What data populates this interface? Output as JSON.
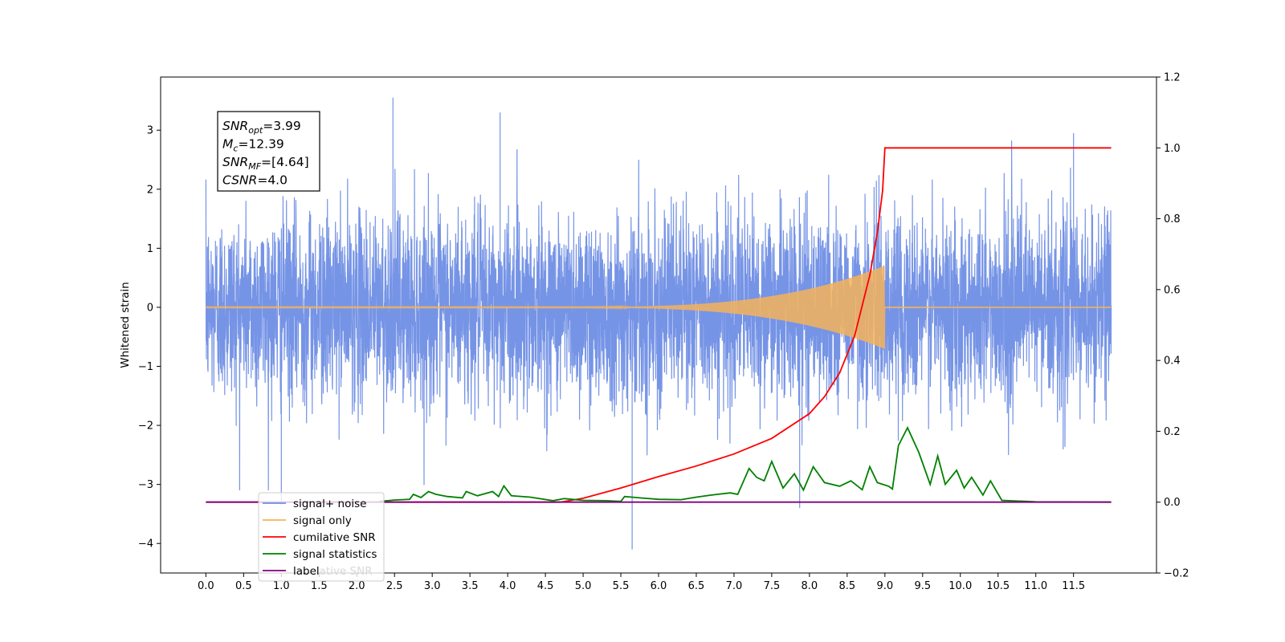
{
  "chart_data": {
    "type": "line",
    "title": "",
    "xlabel": "",
    "ylabel": "Whitened strain",
    "xlim": [
      -0.6,
      12.6
    ],
    "ylim_left": [
      -4.5,
      3.9
    ],
    "ylim_right": [
      -0.2,
      1.2
    ],
    "xticks": [
      "0.0",
      "0.5",
      "1.0",
      "1.5",
      "2.0",
      "2.5",
      "3.0",
      "3.5",
      "4.0",
      "4.5",
      "5.0",
      "5.5",
      "6.0",
      "6.5",
      "7.0",
      "7.5",
      "8.0",
      "8.5",
      "9.0",
      "9.5",
      "10.0",
      "10.5",
      "11.0",
      "11.5"
    ],
    "yticks_left": [
      "3",
      "2",
      "1",
      "0",
      "−1",
      "−2",
      "−3",
      "−4"
    ],
    "yticks_right": [
      "1.2",
      "1.0",
      "0.8",
      "0.6",
      "0.4",
      "0.2",
      "0.0",
      "−0.2"
    ],
    "grid": false,
    "legend_location": "lower-left",
    "info_box": {
      "lines": [
        {
          "base": "SNR",
          "sub": "opt",
          "rest": "=3.99"
        },
        {
          "base": "M",
          "sub": "c",
          "rest": "=12.39"
        },
        {
          "base": "SNR",
          "sub": "MF",
          "rest": "=[4.64]"
        },
        {
          "base": "CSNR",
          "sub": "",
          "rest": "=4.0"
        }
      ]
    },
    "series": [
      {
        "name": "signal+ noise",
        "axis": "left",
        "color": "#6f8ee5",
        "description": "noisy strain, amplitude roughly ±2 with spikes up to 3.55 and down to −4.1, x from 0 to 12",
        "x_range": [
          0,
          12
        ],
        "notable_peaks": [
          [
            2.48,
            3.55
          ],
          [
            3.9,
            3.3
          ],
          [
            11.5,
            2.95
          ],
          [
            5.65,
            -4.1
          ],
          [
            7.87,
            -3.4
          ],
          [
            1.0,
            -3.35
          ]
        ]
      },
      {
        "name": "signal only",
        "axis": "left",
        "color": "#f5b35a",
        "description": "chirp signal, near zero until ~5 then growing to amplitude ~0.7 at 9.0, then ~0",
        "x_range": [
          0,
          12
        ],
        "peak_amplitude": 0.7,
        "merger_x": 9.0
      },
      {
        "name": "cumilative SNR",
        "axis": "right",
        "color": "#ff0000",
        "x": [
          0,
          4.7,
          5.0,
          5.5,
          6.0,
          6.5,
          7.0,
          7.5,
          8.0,
          8.2,
          8.4,
          8.6,
          8.8,
          8.9,
          8.97,
          9.0,
          12.0
        ],
        "y": [
          0,
          0,
          0.011,
          0.04,
          0.072,
          0.102,
          0.136,
          0.18,
          0.25,
          0.298,
          0.365,
          0.47,
          0.64,
          0.76,
          0.88,
          1.0,
          1.0
        ]
      },
      {
        "name": "signal statistics",
        "axis": "right",
        "color": "#008000",
        "x": [
          2.3,
          2.5,
          2.7,
          2.75,
          2.85,
          2.95,
          3.05,
          3.2,
          3.4,
          3.45,
          3.6,
          3.8,
          3.88,
          3.95,
          4.05,
          4.3,
          4.6,
          4.75,
          5.0,
          5.3,
          5.5,
          5.55,
          5.75,
          6.0,
          6.3,
          6.5,
          6.7,
          6.95,
          7.05,
          7.2,
          7.3,
          7.4,
          7.5,
          7.65,
          7.8,
          7.92,
          8.05,
          8.2,
          8.4,
          8.55,
          8.7,
          8.8,
          8.9,
          9.05,
          9.1,
          9.18,
          9.3,
          9.45,
          9.6,
          9.7,
          9.8,
          9.95,
          10.05,
          10.15,
          10.3,
          10.4,
          10.55,
          11.0,
          12.0
        ],
        "y": [
          0.002,
          0.006,
          0.008,
          0.022,
          0.013,
          0.03,
          0.022,
          0.016,
          0.012,
          0.03,
          0.018,
          0.03,
          0.016,
          0.046,
          0.018,
          0.014,
          0.004,
          0.01,
          0.005,
          0.004,
          0.002,
          0.016,
          0.012,
          0.008,
          0.007,
          0.014,
          0.02,
          0.026,
          0.022,
          0.095,
          0.07,
          0.06,
          0.115,
          0.04,
          0.08,
          0.034,
          0.1,
          0.055,
          0.045,
          0.06,
          0.035,
          0.1,
          0.055,
          0.045,
          0.037,
          0.16,
          0.21,
          0.14,
          0.05,
          0.13,
          0.05,
          0.09,
          0.04,
          0.07,
          0.02,
          0.06,
          0.005,
          0.001,
          0.0
        ]
      },
      {
        "name": "labelative SNR",
        "axis": "right",
        "color": "#800080",
        "x": [
          0,
          12
        ],
        "y": [
          0,
          0
        ]
      }
    ]
  },
  "legend": {
    "items": [
      {
        "label": "signal+ noise",
        "color": "#6f8ee5"
      },
      {
        "label": "signal only",
        "color": "#f5b35a"
      },
      {
        "label": "cumilative SNR",
        "color": "#ff0000"
      },
      {
        "label": "signal statistics",
        "color": "#008000"
      },
      {
        "label": "label",
        "ghost": "ative SNR",
        "color": "#800080"
      }
    ]
  }
}
